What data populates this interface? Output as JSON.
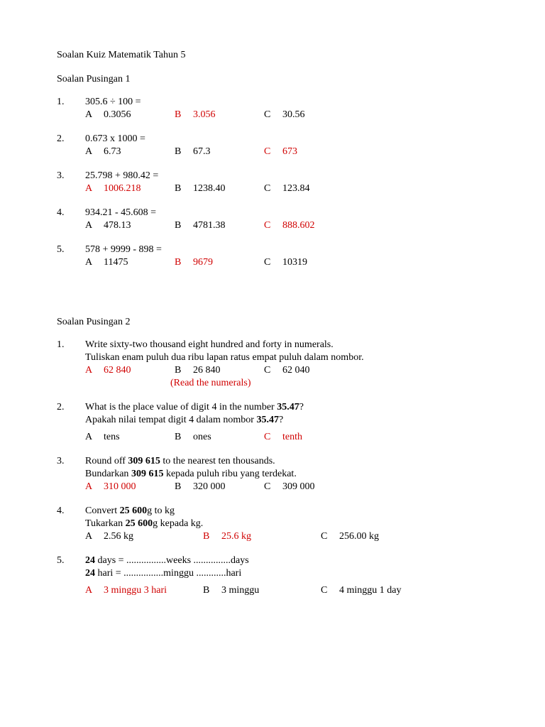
{
  "title": "Soalan Kuiz Matematik Tahun 5",
  "round1": {
    "heading": "Soalan Pusingan 1",
    "q1": {
      "num": "1.",
      "stem": "305.6  ÷ 100 =",
      "A": "A",
      "Av": "0.3056",
      "B": "B",
      "Bv": "3.056",
      "C": "C",
      "Cv": "30.56"
    },
    "q2": {
      "num": "2.",
      "stem": "0.673  x  1000 =",
      "A": "A",
      "Av": "6.73",
      "B": "B",
      "Bv": "67.3",
      "C": "C",
      "Cv": "673"
    },
    "q3": {
      "num": "3.",
      "stem": "25.798  +  980.42 =",
      "A": "A",
      "Av": "1006.218",
      "B": "B",
      "Bv": "1238.40",
      "C": "C",
      "Cv": "123.84"
    },
    "q4": {
      "num": "4.",
      "stem": "934.21  -  45.608 =",
      "A": "A",
      "Av": "478.13",
      "B": "B",
      "Bv": "4781.38",
      "C": "C",
      "Cv": "888.602"
    },
    "q5": {
      "num": "5.",
      "stem": "578  +  9999  -  898 =",
      "A": "A",
      "Av": "11475",
      "B": "B",
      "Bv": "9679",
      "C": "C",
      "Cv": "10319"
    }
  },
  "round2": {
    "heading": "Soalan Pusingan 2",
    "q1": {
      "num": "1.",
      "stem1": "Write sixty-two thousand  eight  hundred  and  forty in numerals.",
      "stem2": "Tuliskan enam puluh dua ribu lapan ratus empat puluh dalam nombor.",
      "A": "A",
      "Av": "62 840",
      "B": "B",
      "Bv": "26 840",
      "C": "C",
      "Cv": "62 040",
      "note": "(Read the numerals)"
    },
    "q2": {
      "num": "2.",
      "stem1a": "What is the place value of digit 4 in the number  ",
      "stem1b": "35.47",
      "stem1c": "?",
      "stem2a": "Apakah nilai tempat digit 4 dalam nombor ",
      "stem2b": "35.47",
      "stem2c": "?",
      "A": "A",
      "Av": "tens",
      "B": "B",
      "Bv": "ones",
      "C": "C",
      "Cv": "tenth"
    },
    "q3": {
      "num": "3.",
      "stem1a": "Round off ",
      "stem1b": "309 615",
      "stem1c": " to the nearest ten thousands.",
      "stem2a": "Bundarkan ",
      "stem2b": "309 615",
      "stem2c": " kepada puluh ribu yang terdekat.",
      "A": "A",
      "Av": "310 000",
      "B": "B",
      "Bv": "320 000",
      "C": "C",
      "Cv": "309 000"
    },
    "q4": {
      "num": "4.",
      "stem1a": "Convert ",
      "stem1b": "25 600",
      "stem1c": "g to kg",
      "stem2a": "Tukarkan ",
      "stem2b": "25 600",
      "stem2c": "g kepada kg.",
      "A": "A",
      "Av": "2.56 kg",
      "B": "B",
      "Bv": "25.6 kg",
      "C": "C",
      "Cv": "256.00 kg"
    },
    "q5": {
      "num": "5.",
      "stem1a": "24",
      "stem1b": " days = ................weeks ...............days",
      "stem2a": "24",
      "stem2b": " hari  = ................minggu ............hari",
      "A": "A",
      "Av": "3 minggu 3 hari",
      "B": "B",
      "Bv": "3 minggu",
      "C": "C",
      "Cv": "4 minggu 1 day"
    }
  }
}
